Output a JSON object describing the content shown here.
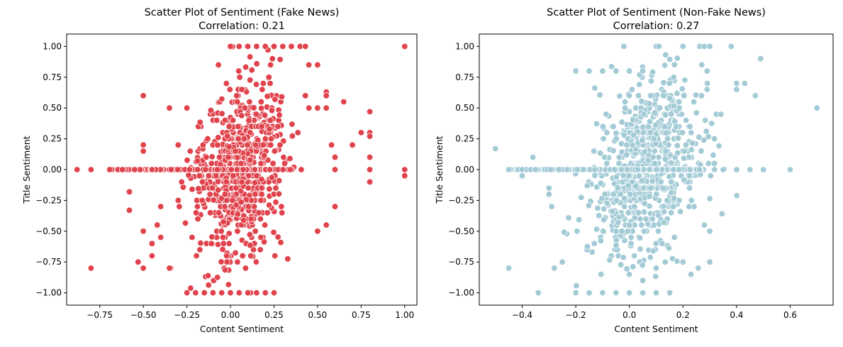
{
  "chart_data": [
    {
      "type": "scatter",
      "title": "Scatter Plot of Sentiment (Fake News)",
      "subtitle": "Correlation: 0.21",
      "xlabel": "Content Sentiment",
      "ylabel": "Title Sentiment",
      "xlim": [
        -0.94,
        1.07
      ],
      "ylim": [
        -1.1,
        1.1
      ],
      "xticks": [
        -0.75,
        -0.5,
        -0.25,
        0.0,
        0.25,
        0.5,
        0.75,
        1.0
      ],
      "xtick_labels": [
        "−0.75",
        "−0.50",
        "−0.25",
        "0.00",
        "0.25",
        "0.50",
        "0.75",
        "1.00"
      ],
      "yticks": [
        1.0,
        0.75,
        0.5,
        0.25,
        0.0,
        -0.25,
        -0.5,
        -0.75,
        -1.0
      ],
      "ytick_labels": [
        "1.00",
        "0.75",
        "0.50",
        "0.25",
        "0.00",
        "−0.25",
        "−0.50",
        "−0.75",
        "−1.00"
      ],
      "grid": false,
      "color": "#e0434c",
      "cluster": {
        "x_center": 0.05,
        "x_spread": 0.12,
        "y_spread": 0.35,
        "corr": 0.21,
        "count": 900,
        "seed": 11
      },
      "points": [
        [
          -0.88,
          0.0
        ],
        [
          -0.8,
          0.0
        ],
        [
          -0.8,
          -0.8
        ],
        [
          -0.62,
          0.0
        ],
        [
          -0.58,
          -0.18
        ],
        [
          -0.58,
          -0.33
        ],
        [
          -0.55,
          0.0
        ],
        [
          -0.53,
          -0.75
        ],
        [
          -0.5,
          0.6
        ],
        [
          -0.5,
          0.2
        ],
        [
          -0.5,
          0.15
        ],
        [
          -0.5,
          -0.8
        ],
        [
          -0.45,
          0.0
        ],
        [
          -0.42,
          -0.45
        ],
        [
          -0.4,
          -0.55
        ],
        [
          -0.4,
          -0.3
        ],
        [
          -0.35,
          0.5
        ],
        [
          -0.35,
          -0.8
        ],
        [
          -0.3,
          0.2
        ],
        [
          -0.25,
          0.5
        ],
        [
          -0.25,
          -1.0
        ],
        [
          -0.2,
          -1.0
        ],
        [
          -0.15,
          -1.0
        ],
        [
          -0.1,
          -1.0
        ],
        [
          -0.05,
          -1.0
        ],
        [
          0.0,
          -1.0
        ],
        [
          0.05,
          -1.0
        ],
        [
          0.1,
          -1.0
        ],
        [
          0.15,
          -1.0
        ],
        [
          0.2,
          -1.0
        ],
        [
          0.25,
          -1.0
        ],
        [
          0.0,
          1.0
        ],
        [
          0.05,
          1.0
        ],
        [
          0.1,
          1.0
        ],
        [
          0.15,
          1.0
        ],
        [
          0.2,
          1.0
        ],
        [
          0.25,
          1.0
        ],
        [
          0.3,
          1.0
        ],
        [
          0.35,
          1.0
        ],
        [
          0.4,
          1.0
        ],
        [
          0.43,
          1.0
        ],
        [
          0.45,
          0.85
        ],
        [
          0.5,
          0.85
        ],
        [
          0.43,
          0.6
        ],
        [
          0.5,
          0.5
        ],
        [
          0.5,
          -0.5
        ],
        [
          0.55,
          0.63
        ],
        [
          0.55,
          0.6
        ],
        [
          0.55,
          0.5
        ],
        [
          0.55,
          -0.45
        ],
        [
          0.58,
          0.2
        ],
        [
          0.6,
          0.1
        ],
        [
          0.6,
          0.0
        ],
        [
          0.6,
          -0.3
        ],
        [
          0.65,
          0.55
        ],
        [
          0.7,
          0.2
        ],
        [
          0.75,
          0.3
        ],
        [
          0.8,
          0.47
        ],
        [
          0.8,
          0.3
        ],
        [
          0.8,
          0.27
        ],
        [
          0.8,
          0.1
        ],
        [
          0.8,
          0.0
        ],
        [
          0.8,
          -0.1
        ],
        [
          1.0,
          1.0
        ],
        [
          1.0,
          0.0
        ],
        [
          1.0,
          -0.05
        ],
        [
          -0.5,
          -0.5
        ],
        [
          -0.45,
          -0.6
        ],
        [
          -0.45,
          -0.7
        ],
        [
          -0.3,
          -0.25
        ],
        [
          -0.28,
          -0.1
        ]
      ]
    },
    {
      "type": "scatter",
      "title": "Scatter Plot of Sentiment (Non-Fake News)",
      "subtitle": "Correlation: 0.27",
      "xlabel": "Content Sentiment",
      "ylabel": "Title Sentiment",
      "xlim": [
        -0.56,
        0.76
      ],
      "ylim": [
        -1.1,
        1.1
      ],
      "xticks": [
        -0.4,
        -0.2,
        0.0,
        0.2,
        0.4,
        0.6
      ],
      "xtick_labels": [
        "−0.4",
        "−0.2",
        "0.0",
        "0.2",
        "0.4",
        "0.6"
      ],
      "yticks": [
        1.0,
        0.75,
        0.5,
        0.25,
        0.0,
        -0.25,
        -0.5,
        -0.75,
        -1.0
      ],
      "ytick_labels": [
        "1.00",
        "0.75",
        "0.50",
        "0.25",
        "0.00",
        "−0.25",
        "−0.50",
        "−0.75",
        "−1.00"
      ],
      "grid": false,
      "color": "#a3cbd6",
      "cluster": {
        "x_center": 0.06,
        "x_spread": 0.1,
        "y_spread": 0.33,
        "corr": 0.27,
        "count": 1000,
        "seed": 23
      },
      "points": [
        [
          -0.5,
          0.17
        ],
        [
          -0.45,
          0.0
        ],
        [
          -0.45,
          -0.8
        ],
        [
          -0.4,
          0.0
        ],
        [
          -0.4,
          -0.05
        ],
        [
          -0.36,
          0.1
        ],
        [
          -0.35,
          0.0
        ],
        [
          -0.34,
          -1.0
        ],
        [
          -0.3,
          -0.15
        ],
        [
          -0.3,
          -0.2
        ],
        [
          -0.29,
          -0.3
        ],
        [
          -0.28,
          -0.8
        ],
        [
          -0.25,
          -0.75
        ],
        [
          -0.2,
          -1.0
        ],
        [
          -0.15,
          -1.0
        ],
        [
          -0.1,
          -1.0
        ],
        [
          -0.05,
          -1.0
        ],
        [
          0.0,
          -1.0
        ],
        [
          0.05,
          -1.0
        ],
        [
          0.1,
          -1.0
        ],
        [
          -0.2,
          0.8
        ],
        [
          -0.15,
          0.8
        ],
        [
          -0.1,
          0.8
        ],
        [
          -0.05,
          0.8
        ],
        [
          0.0,
          0.8
        ],
        [
          0.05,
          0.8
        ],
        [
          0.1,
          1.0
        ],
        [
          0.11,
          1.0
        ],
        [
          0.2,
          1.0
        ],
        [
          0.28,
          1.0
        ],
        [
          0.3,
          1.0
        ],
        [
          0.38,
          1.0
        ],
        [
          0.29,
          0.8
        ],
        [
          0.4,
          0.7
        ],
        [
          0.4,
          0.65
        ],
        [
          0.43,
          0.7
        ],
        [
          0.47,
          0.6
        ],
        [
          0.49,
          0.9
        ],
        [
          0.35,
          0.0
        ],
        [
          0.4,
          0.0
        ],
        [
          0.45,
          0.0
        ],
        [
          0.5,
          0.0
        ],
        [
          0.6,
          0.0
        ],
        [
          0.7,
          0.5
        ],
        [
          0.3,
          -0.5
        ],
        [
          0.3,
          -0.75
        ],
        [
          0.2,
          -0.75
        ],
        [
          0.23,
          -0.85
        ],
        [
          0.1,
          -0.8
        ],
        [
          0.05,
          -0.9
        ]
      ]
    }
  ]
}
